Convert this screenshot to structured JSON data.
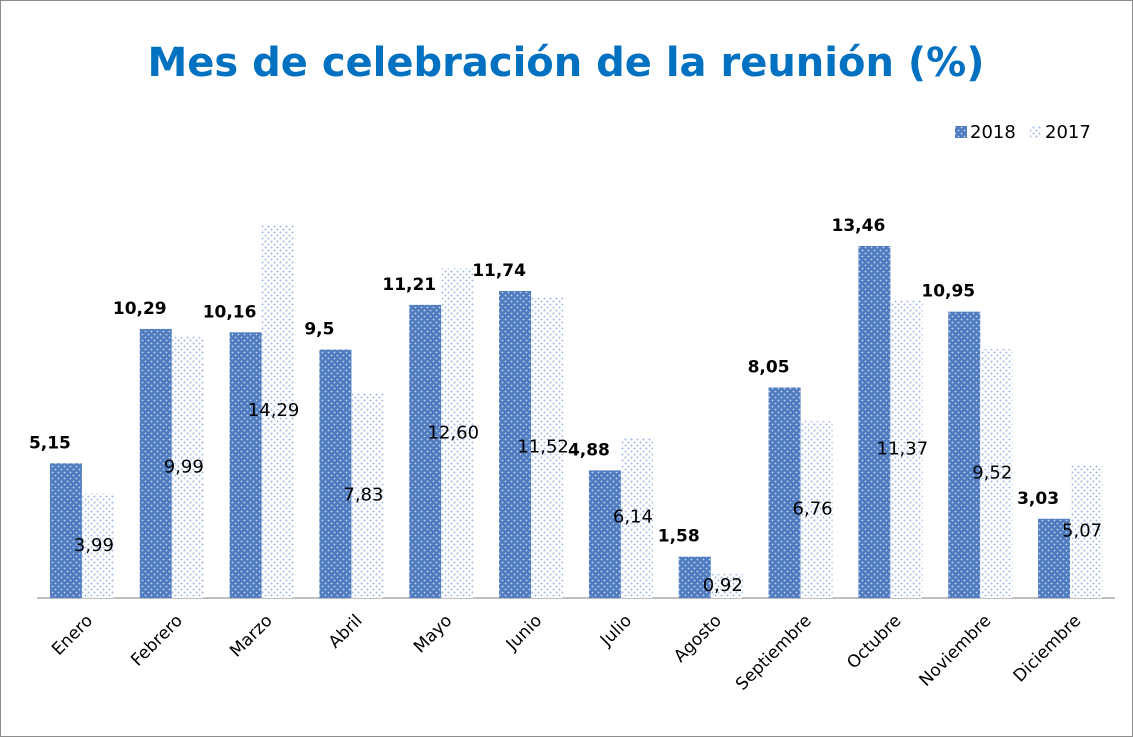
{
  "chart_data": {
    "type": "bar",
    "title": "Mes de celebración de la reunión (%)",
    "categories": [
      "Enero",
      "Febrero",
      "Marzo",
      "Abril",
      "Mayo",
      "Junio",
      "Julio",
      "Agosto",
      "Septiembre",
      "Octubre",
      "Noviembre",
      "Diciembre"
    ],
    "series": [
      {
        "name": "2018",
        "color": "#4f7cc0",
        "values": [
          5.15,
          10.29,
          10.16,
          9.5,
          11.21,
          11.74,
          4.88,
          1.58,
          8.05,
          13.46,
          10.95,
          3.03
        ],
        "value_labels": [
          "5,15",
          "10,29",
          "10,16",
          "9,5",
          "11,21",
          "11,74",
          "4,88",
          "1,58",
          "8,05",
          "13,46",
          "10,95",
          "3,03"
        ]
      },
      {
        "name": "2017",
        "color": "#9db8e2",
        "values": [
          3.99,
          9.99,
          14.29,
          7.83,
          12.6,
          11.52,
          6.14,
          0.92,
          6.76,
          11.37,
          9.52,
          5.07
        ],
        "value_labels": [
          "3,99",
          "9,99",
          "14,29",
          "7,83",
          "12,60",
          "11,52",
          "6,14",
          "0,92",
          "6,76",
          "11,37",
          "9,52",
          "5,07"
        ]
      }
    ],
    "legend": "top-right"
  }
}
